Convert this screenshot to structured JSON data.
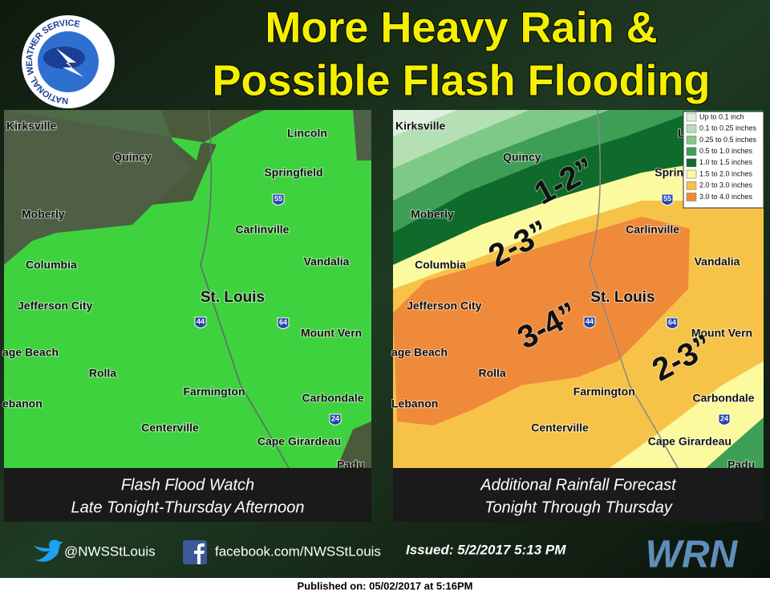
{
  "header": {
    "title_lines": [
      "More Heavy Rain &",
      "Possible Flash Flooding"
    ],
    "logo_text": "NATIONAL WEATHER SERVICE"
  },
  "maps": [
    {
      "cities": [
        "Kirksville",
        "Quincy",
        "Lincoln",
        "Springfield",
        "Moberly",
        "Carlinville",
        "Columbia",
        "Vandalia",
        "St. Louis",
        "Jefferson City",
        "Mount Vern",
        "age Beach",
        "Rolla",
        "Farmington",
        "Carbondale",
        "ebanon",
        "Centerville",
        "Cape Girardeau",
        "Padu"
      ],
      "highways": [
        "55",
        "44",
        "64",
        "24"
      ],
      "caption": [
        "Flash Flood Watch",
        "Late Tonight-Thursday Afternoon"
      ]
    },
    {
      "cities": [
        "Kirksville",
        "Quincy",
        "Lincoln",
        "Springfield",
        "Moberly",
        "Carlinville",
        "Columbia",
        "Vandalia",
        "St. Louis",
        "Jefferson City",
        "Mount Vern",
        "age Beach",
        "Rolla",
        "Farmington",
        "Carbondale",
        "Lebanon",
        "Centerville",
        "Cape Girardeau",
        "Padu"
      ],
      "highways": [
        "55",
        "44",
        "64",
        "24"
      ],
      "legend": [
        {
          "label": "Up to 0.1 inch",
          "color": "#dff0df"
        },
        {
          "label": "0.1 to 0.25 inches",
          "color": "#b5e0b5"
        },
        {
          "label": "0.25 to 0.5 inches",
          "color": "#7fc987"
        },
        {
          "label": "0.5 to 1.0 inches",
          "color": "#3f9e55"
        },
        {
          "label": "1.0 to 1.5 inches",
          "color": "#0f6b2c"
        },
        {
          "label": "1.5 to 2.0 inches",
          "color": "#fbfa9e"
        },
        {
          "label": "2.0 to 3.0 inches",
          "color": "#f6c348"
        },
        {
          "label": "3.0 to 4.0 inches",
          "color": "#ef8a3a"
        }
      ],
      "annotations": [
        "1-2”",
        "2-3”",
        "3-4”",
        "2-3”"
      ],
      "caption": [
        "Additional Rainfall Forecast",
        "Tonight Through Thursday"
      ]
    }
  ],
  "footer": {
    "twitter": "@NWSStLouis",
    "facebook": "facebook.com/NWSStLouis",
    "issued": "Issued: 5/2/2017 5:13 PM",
    "brand": "WRN"
  },
  "published": "Published on: 05/02/2017 at 5:16PM"
}
